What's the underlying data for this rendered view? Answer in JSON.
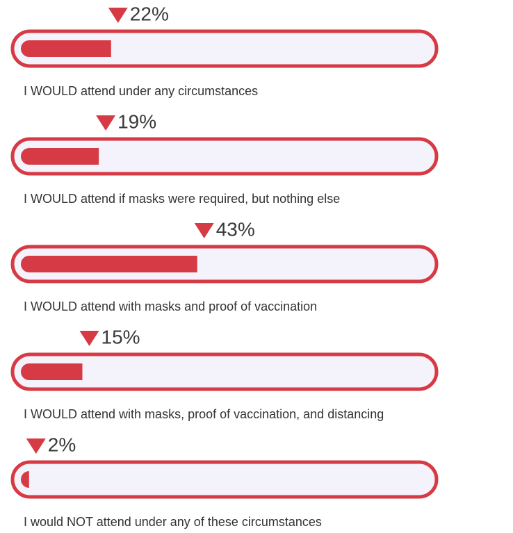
{
  "chart_data": {
    "type": "bar",
    "orientation": "horizontal",
    "categories": [
      "I WOULD attend under any circumstances",
      "I WOULD attend if masks were required, but nothing else",
      "I WOULD attend with masks and proof of vaccination",
      "I WOULD attend with masks, proof of vaccination, and distancing",
      "I would NOT attend under any of these circumstances"
    ],
    "values": [
      22,
      19,
      43,
      15,
      2
    ],
    "value_labels": [
      "22%",
      "19%",
      "43%",
      "15%",
      "2%"
    ],
    "color": "#d63a44",
    "xlim": [
      0,
      100
    ]
  }
}
